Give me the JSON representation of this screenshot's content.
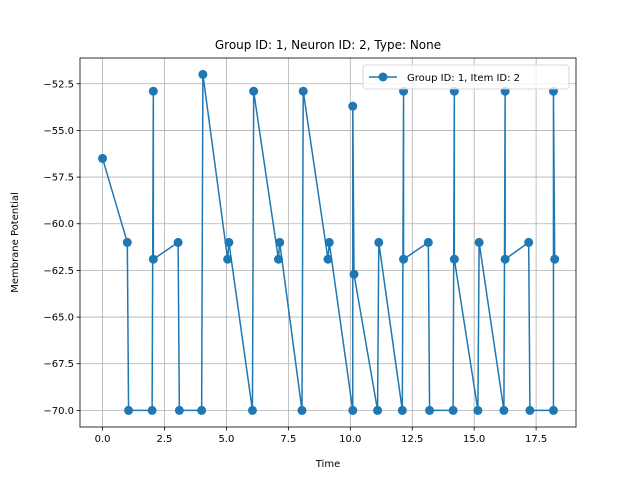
{
  "chart_data": {
    "type": "line",
    "title": "Group ID: 1, Neuron ID: 2, Type: None",
    "xlabel": "Time",
    "ylabel": "Membrane Potential",
    "xlim": [
      -0.91,
      19.11
    ],
    "ylim": [
      -70.89,
      -51.12
    ],
    "xticks": [
      0.0,
      2.5,
      5.0,
      7.5,
      10.0,
      12.5,
      15.0,
      17.5
    ],
    "xtick_labels": [
      "0.0",
      "2.5",
      "5.0",
      "7.5",
      "10.0",
      "12.5",
      "15.0",
      "17.5"
    ],
    "yticks": [
      -52.5,
      -55.0,
      -57.5,
      -60.0,
      -62.5,
      -65.0,
      -67.5,
      -70.0
    ],
    "ytick_labels": [
      "−52.5",
      "−55.0",
      "−57.5",
      "−60.0",
      "−62.5",
      "−65.0",
      "−67.5",
      "−70.0"
    ],
    "grid": true,
    "legend_position": "top-right",
    "series": [
      {
        "name": "Group ID: 1, Item ID: 2",
        "color": "#1f77b4",
        "marker": "circle",
        "x": [
          0.0,
          1.0,
          1.05,
          2.0,
          2.05,
          2.05,
          3.05,
          3.1,
          4.0,
          4.05,
          5.05,
          5.1,
          6.05,
          6.1,
          7.1,
          7.15,
          8.05,
          8.1,
          9.1,
          9.15,
          10.1,
          10.1,
          10.15,
          11.1,
          11.15,
          12.1,
          12.15,
          12.15,
          13.15,
          13.2,
          14.15,
          14.2,
          14.2,
          15.15,
          15.2,
          16.2,
          16.25,
          16.25,
          17.2,
          17.25,
          18.2,
          18.2,
          18.25
        ],
        "y": [
          -56.5,
          -61.0,
          -70.0,
          -70.0,
          -52.9,
          -61.9,
          -61.0,
          -70.0,
          -70.0,
          -52.0,
          -61.9,
          -61.0,
          -70.0,
          -52.9,
          -61.9,
          -61.0,
          -70.0,
          -52.9,
          -61.9,
          -61.0,
          -70.0,
          -53.7,
          -62.7,
          -70.0,
          -61.0,
          -70.0,
          -52.9,
          -61.9,
          -61.0,
          -70.0,
          -70.0,
          -52.9,
          -61.9,
          -70.0,
          -61.0,
          -70.0,
          -52.9,
          -61.9,
          -61.0,
          -70.0,
          -70.0,
          -52.9,
          -61.9
        ]
      }
    ]
  }
}
